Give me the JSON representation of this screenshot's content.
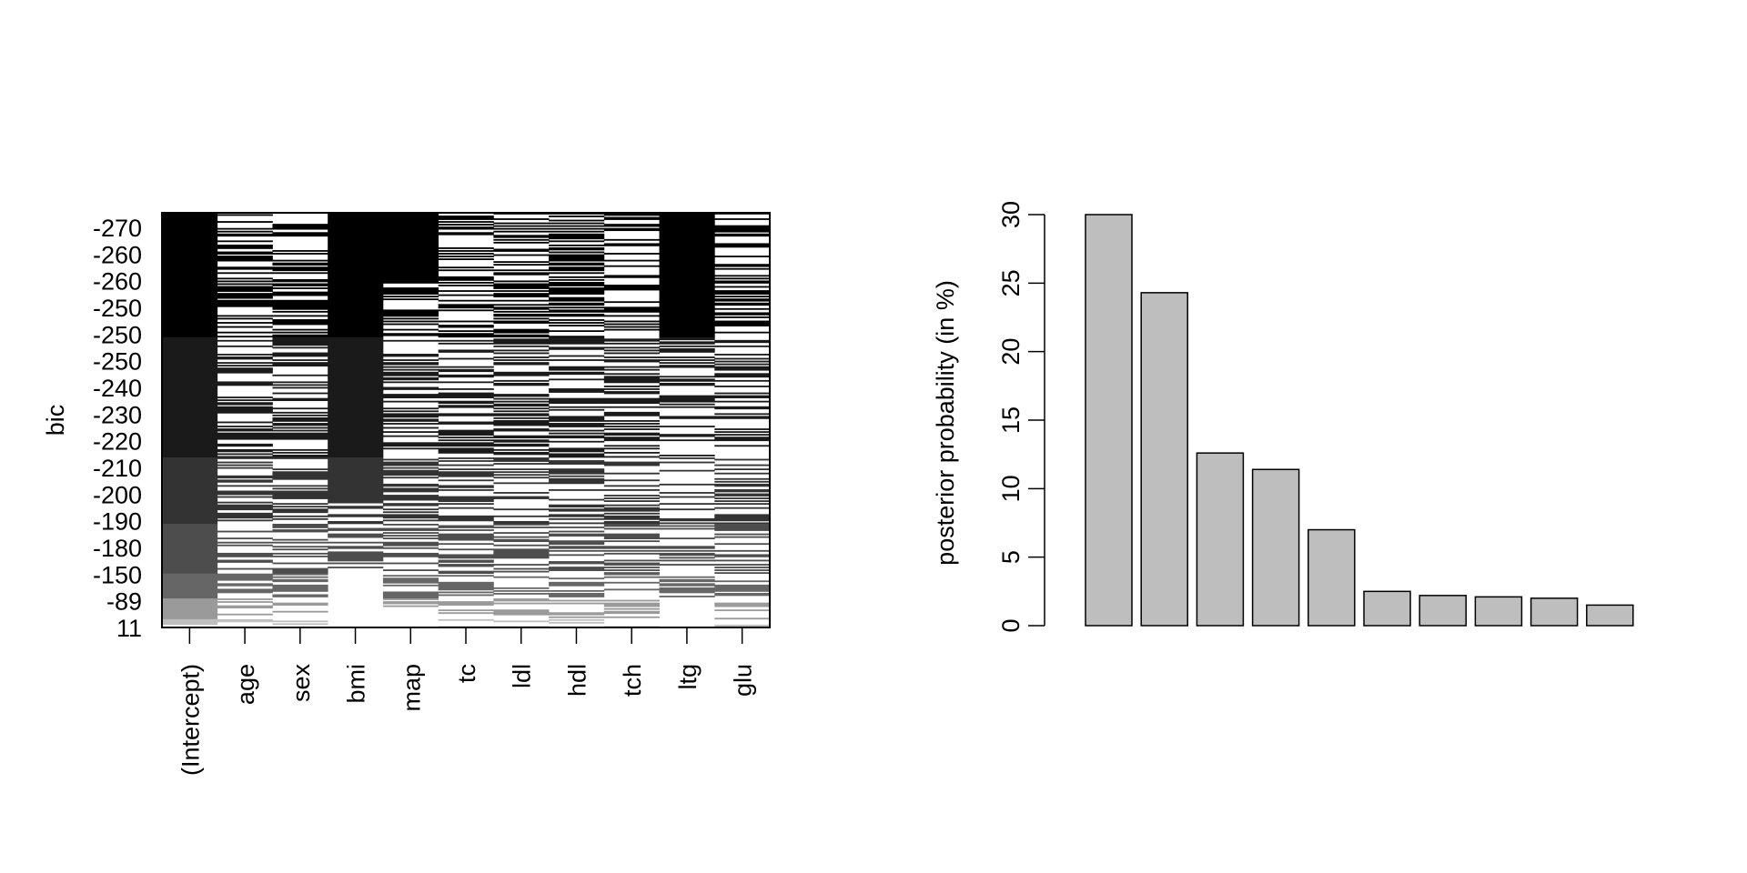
{
  "chart_data": [
    {
      "type": "heatmap",
      "ylabel": "bic",
      "xlabel": "",
      "columns": [
        "(Intercept)",
        "age",
        "sex",
        "bmi",
        "map",
        "tc",
        "ldl",
        "hdl",
        "tch",
        "ltg",
        "glu"
      ],
      "y_tick_labels": [
        "-270",
        "-260",
        "-260",
        "-250",
        "-250",
        "-250",
        "-240",
        "-230",
        "-220",
        "-210",
        "-200",
        "-190",
        "-180",
        "-150",
        "-89",
        "11"
      ],
      "shade_levels": [
        {
          "from": "-270",
          "to": "-250",
          "color": "#000000"
        },
        {
          "from": "-250",
          "to": "-220",
          "color": "#1a1a1a"
        },
        {
          "from": "-210",
          "to": "-190",
          "color": "#333333"
        },
        {
          "from": "-180",
          "to": "-180",
          "color": "#4d4d4d"
        },
        {
          "from": "-150",
          "to": "-150",
          "color": "#666666"
        },
        {
          "from": "-89",
          "to": "-89",
          "color": "#9a9a9a"
        },
        {
          "from": "11",
          "to": "11",
          "color": "#bfbfbf"
        }
      ],
      "colors": {
        "included_dark": "#000000",
        "excluded": "#ffffff",
        "border": "#000000"
      }
    },
    {
      "type": "bar",
      "ylabel": "posterior probability (in %)",
      "xlabel": "",
      "categories": [
        "",
        "",
        "",
        "",
        "",
        "",
        "",
        "",
        "",
        ""
      ],
      "values": [
        30.0,
        24.3,
        12.6,
        11.4,
        7.0,
        2.5,
        2.2,
        2.1,
        2.0,
        1.5
      ],
      "ylim": [
        0,
        30
      ],
      "y_ticks": [
        0,
        5,
        10,
        15,
        20,
        25,
        30
      ],
      "colors": {
        "bar_fill": "#bebebe",
        "bar_stroke": "#000000"
      },
      "grid": false
    }
  ]
}
